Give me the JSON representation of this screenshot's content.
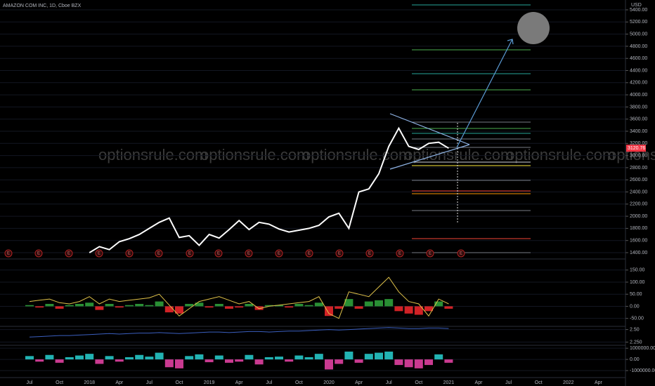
{
  "header": {
    "symbol": "AMAZON COM INC, 1D, Cboe BZX",
    "currency": "USD"
  },
  "watermark": "optionsrule.com",
  "earnings_marker": "E",
  "chart_data": [
    {
      "type": "line",
      "categories": [
        "Jul",
        null,
        null,
        "Oct",
        null,
        null,
        "2018",
        null,
        null,
        "Apr",
        null,
        null,
        "Jul",
        null,
        null,
        "Oct",
        null,
        null,
        "2019",
        null,
        null,
        "Apr",
        null,
        null,
        "Jul",
        null,
        null,
        "Oct",
        null,
        null,
        "2020",
        null,
        null,
        "Apr",
        null,
        null,
        "Jul",
        null,
        null,
        "Oct",
        null,
        null,
        "2021",
        null,
        null,
        "Apr",
        null,
        null,
        "Jul",
        null,
        null,
        "Oct",
        null,
        null,
        "2022",
        null,
        null,
        "Apr",
        null,
        null
      ],
      "series": [
        {
          "color": "#ffffff",
          "values": [
            null,
            null,
            null,
            null,
            null,
            null,
            1400,
            1500,
            1450,
            1580,
            1630,
            1700,
            1800,
            1900,
            1970,
            1650,
            1680,
            1520,
            1700,
            1640,
            1780,
            1930,
            1780,
            1900,
            1870,
            1790,
            1740,
            1770,
            1800,
            1850,
            1990,
            2050,
            1800,
            2400,
            2450,
            2700,
            3150,
            3450,
            3150,
            3100,
            3200,
            3220,
            3120,
            null,
            null,
            null,
            null,
            null,
            null,
            null,
            null,
            null,
            null,
            null,
            null,
            null,
            null,
            null,
            null,
            null
          ]
        }
      ],
      "last_price": 3120.76,
      "last_price_color": "#f23645",
      "levels": [
        5481,
        4741,
        4348,
        4082,
        3550,
        3446,
        3365,
        3273,
        3134,
        2891,
        2834,
        2591,
        2417,
        2371,
        2094,
        1631,
        1400
      ],
      "level_colors": [
        "#26a69a",
        "#4caf50",
        "#26a69a",
        "#4caf50",
        "#787b86",
        "#4caf50",
        "#26a69a",
        "#787b86",
        "#787b86",
        "#d1d4dc",
        "#ffeb3b",
        "#787b86",
        "#f44336",
        "#ff9800",
        "#787b86",
        "#f44336",
        "#787b86"
      ],
      "ylim": [
        1296,
        5562
      ],
      "yticks": [
        {
          "value": 1400,
          "label": "1400.00"
        },
        {
          "value": 1600,
          "label": "1600.00"
        },
        {
          "value": 1800,
          "label": "1800.00"
        },
        {
          "value": 2000,
          "label": "2000.00"
        },
        {
          "value": 2200,
          "label": "2200.00"
        },
        {
          "value": 2400,
          "label": "2400.00"
        },
        {
          "value": 2600,
          "label": "2600.00"
        },
        {
          "value": 2800,
          "label": "2800.00"
        },
        {
          "value": 3000,
          "label": "3000.00"
        },
        {
          "value": 3200,
          "label": "3200.00"
        },
        {
          "value": 3400,
          "label": "3400.00"
        },
        {
          "value": 3600,
          "label": "3600.00"
        },
        {
          "value": 3800,
          "label": "3800.00"
        },
        {
          "value": 4000,
          "label": "4000.00"
        },
        {
          "value": 4200,
          "label": "4200.00"
        },
        {
          "value": 4400,
          "label": "4400.00"
        },
        {
          "value": 4600,
          "label": "4600.00"
        },
        {
          "value": 4800,
          "label": "4800.00"
        },
        {
          "value": 5000,
          "label": "5000.00"
        },
        {
          "value": 5200,
          "label": "5200.00"
        },
        {
          "value": 5400,
          "label": "5400.00"
        }
      ]
    },
    {
      "type": "combo",
      "series": [
        {
          "kind": "bar",
          "pos_color": "#2e9e3a",
          "neg_color": "#e8262a",
          "values": [
            5,
            -5,
            10,
            -10,
            5,
            10,
            15,
            -15,
            10,
            -5,
            5,
            10,
            5,
            20,
            -25,
            -30,
            10,
            15,
            -5,
            10,
            -10,
            -5,
            10,
            -15,
            5,
            5,
            -5,
            10,
            5,
            15,
            -40,
            -10,
            30,
            -10,
            20,
            25,
            30,
            -20,
            -30,
            -35,
            -20,
            20,
            -10,
            null,
            null,
            null,
            null,
            null,
            null,
            null,
            null,
            null,
            null,
            null,
            null,
            null,
            null,
            null,
            null,
            null
          ]
        },
        {
          "kind": "line",
          "color": "#e0c24a",
          "values": [
            20,
            25,
            30,
            15,
            10,
            20,
            40,
            10,
            30,
            20,
            25,
            30,
            35,
            50,
            5,
            -40,
            -10,
            20,
            30,
            40,
            25,
            10,
            20,
            -10,
            0,
            5,
            10,
            15,
            20,
            40,
            -30,
            -50,
            60,
            50,
            40,
            80,
            120,
            60,
            20,
            10,
            -40,
            30,
            10,
            null,
            null,
            null,
            null,
            null,
            null,
            null,
            null,
            null,
            null,
            null,
            null,
            null,
            null,
            null,
            null,
            null
          ]
        }
      ],
      "ylim": [
        -80,
        190
      ],
      "yticks": [
        {
          "value": 150,
          "label": "150.00"
        },
        {
          "value": 100,
          "label": "100.00"
        },
        {
          "value": 50,
          "label": "50.00"
        },
        {
          "value": 0,
          "label": "0.00"
        },
        {
          "value": -50,
          "label": "-50.00"
        }
      ]
    },
    {
      "type": "line",
      "series": [
        {
          "color": "#3b5fbf",
          "values": [
            2.35,
            2.36,
            2.37,
            2.38,
            2.38,
            2.39,
            2.4,
            2.41,
            2.42,
            2.41,
            2.42,
            2.43,
            2.43,
            2.44,
            2.43,
            2.42,
            2.43,
            2.44,
            2.45,
            2.45,
            2.44,
            2.45,
            2.46,
            2.46,
            2.45,
            2.46,
            2.47,
            2.47,
            2.48,
            2.49,
            2.5,
            2.49,
            2.5,
            2.51,
            2.52,
            2.53,
            2.54,
            2.53,
            2.52,
            2.52,
            2.53,
            2.53,
            2.52,
            null,
            null,
            null,
            null,
            null,
            null,
            null,
            null,
            null,
            null,
            null,
            null,
            null,
            null,
            null,
            null,
            null
          ]
        }
      ],
      "ylim": [
        2.2,
        2.55
      ],
      "yticks": [
        {
          "value": 2.5,
          "label": "2.50"
        },
        {
          "value": 2.25,
          "label": "2.250"
        }
      ]
    },
    {
      "type": "bar",
      "series": [
        {
          "pos_color": "#26c6c6",
          "neg_color": "#e040a0",
          "values": [
            300000,
            -200000,
            400000,
            -300000,
            200000,
            350000,
            500000,
            -400000,
            300000,
            -200000,
            200000,
            400000,
            250000,
            600000,
            -700000,
            -800000,
            300000,
            450000,
            -250000,
            350000,
            -300000,
            -200000,
            400000,
            -450000,
            200000,
            250000,
            -200000,
            350000,
            200000,
            500000,
            -900000,
            -400000,
            700000,
            -300000,
            500000,
            600000,
            700000,
            -500000,
            -700000,
            -800000,
            -500000,
            450000,
            -300000,
            null,
            null,
            null,
            null,
            null,
            null,
            null,
            null,
            null,
            null,
            null,
            null,
            null,
            null,
            null,
            null,
            null
          ]
        }
      ],
      "ylim": [
        -1500000,
        1200000
      ],
      "yticks": [
        {
          "value": 1000000,
          "label": "1000000.00"
        },
        {
          "value": 0,
          "label": "0.00"
        },
        {
          "value": -1000000,
          "label": "-1000000.00"
        }
      ]
    }
  ]
}
